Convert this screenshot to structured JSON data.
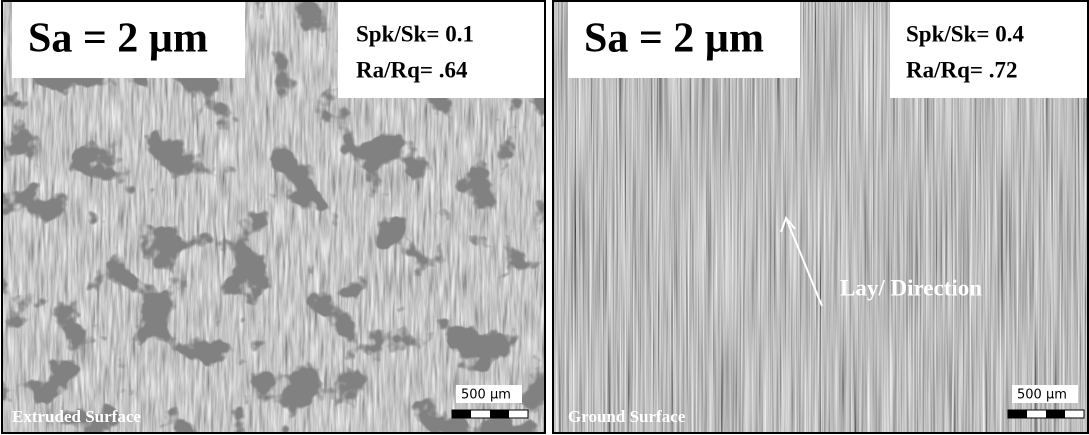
{
  "panels": [
    {
      "sa": "Sa = 2 µm",
      "metrics": [
        "Spk/Sk= 0.1",
        "Ra/Rq= .64"
      ],
      "scale": "500 µm",
      "caption": "Extruded Surface"
    },
    {
      "sa": "Sa = 2 µm",
      "metrics": [
        "Spk/Sk= 0.4",
        "Ra/Rq= .72"
      ],
      "scale": "500 µm",
      "caption": "Ground Surface",
      "annotation": "Lay/ Direction"
    }
  ]
}
